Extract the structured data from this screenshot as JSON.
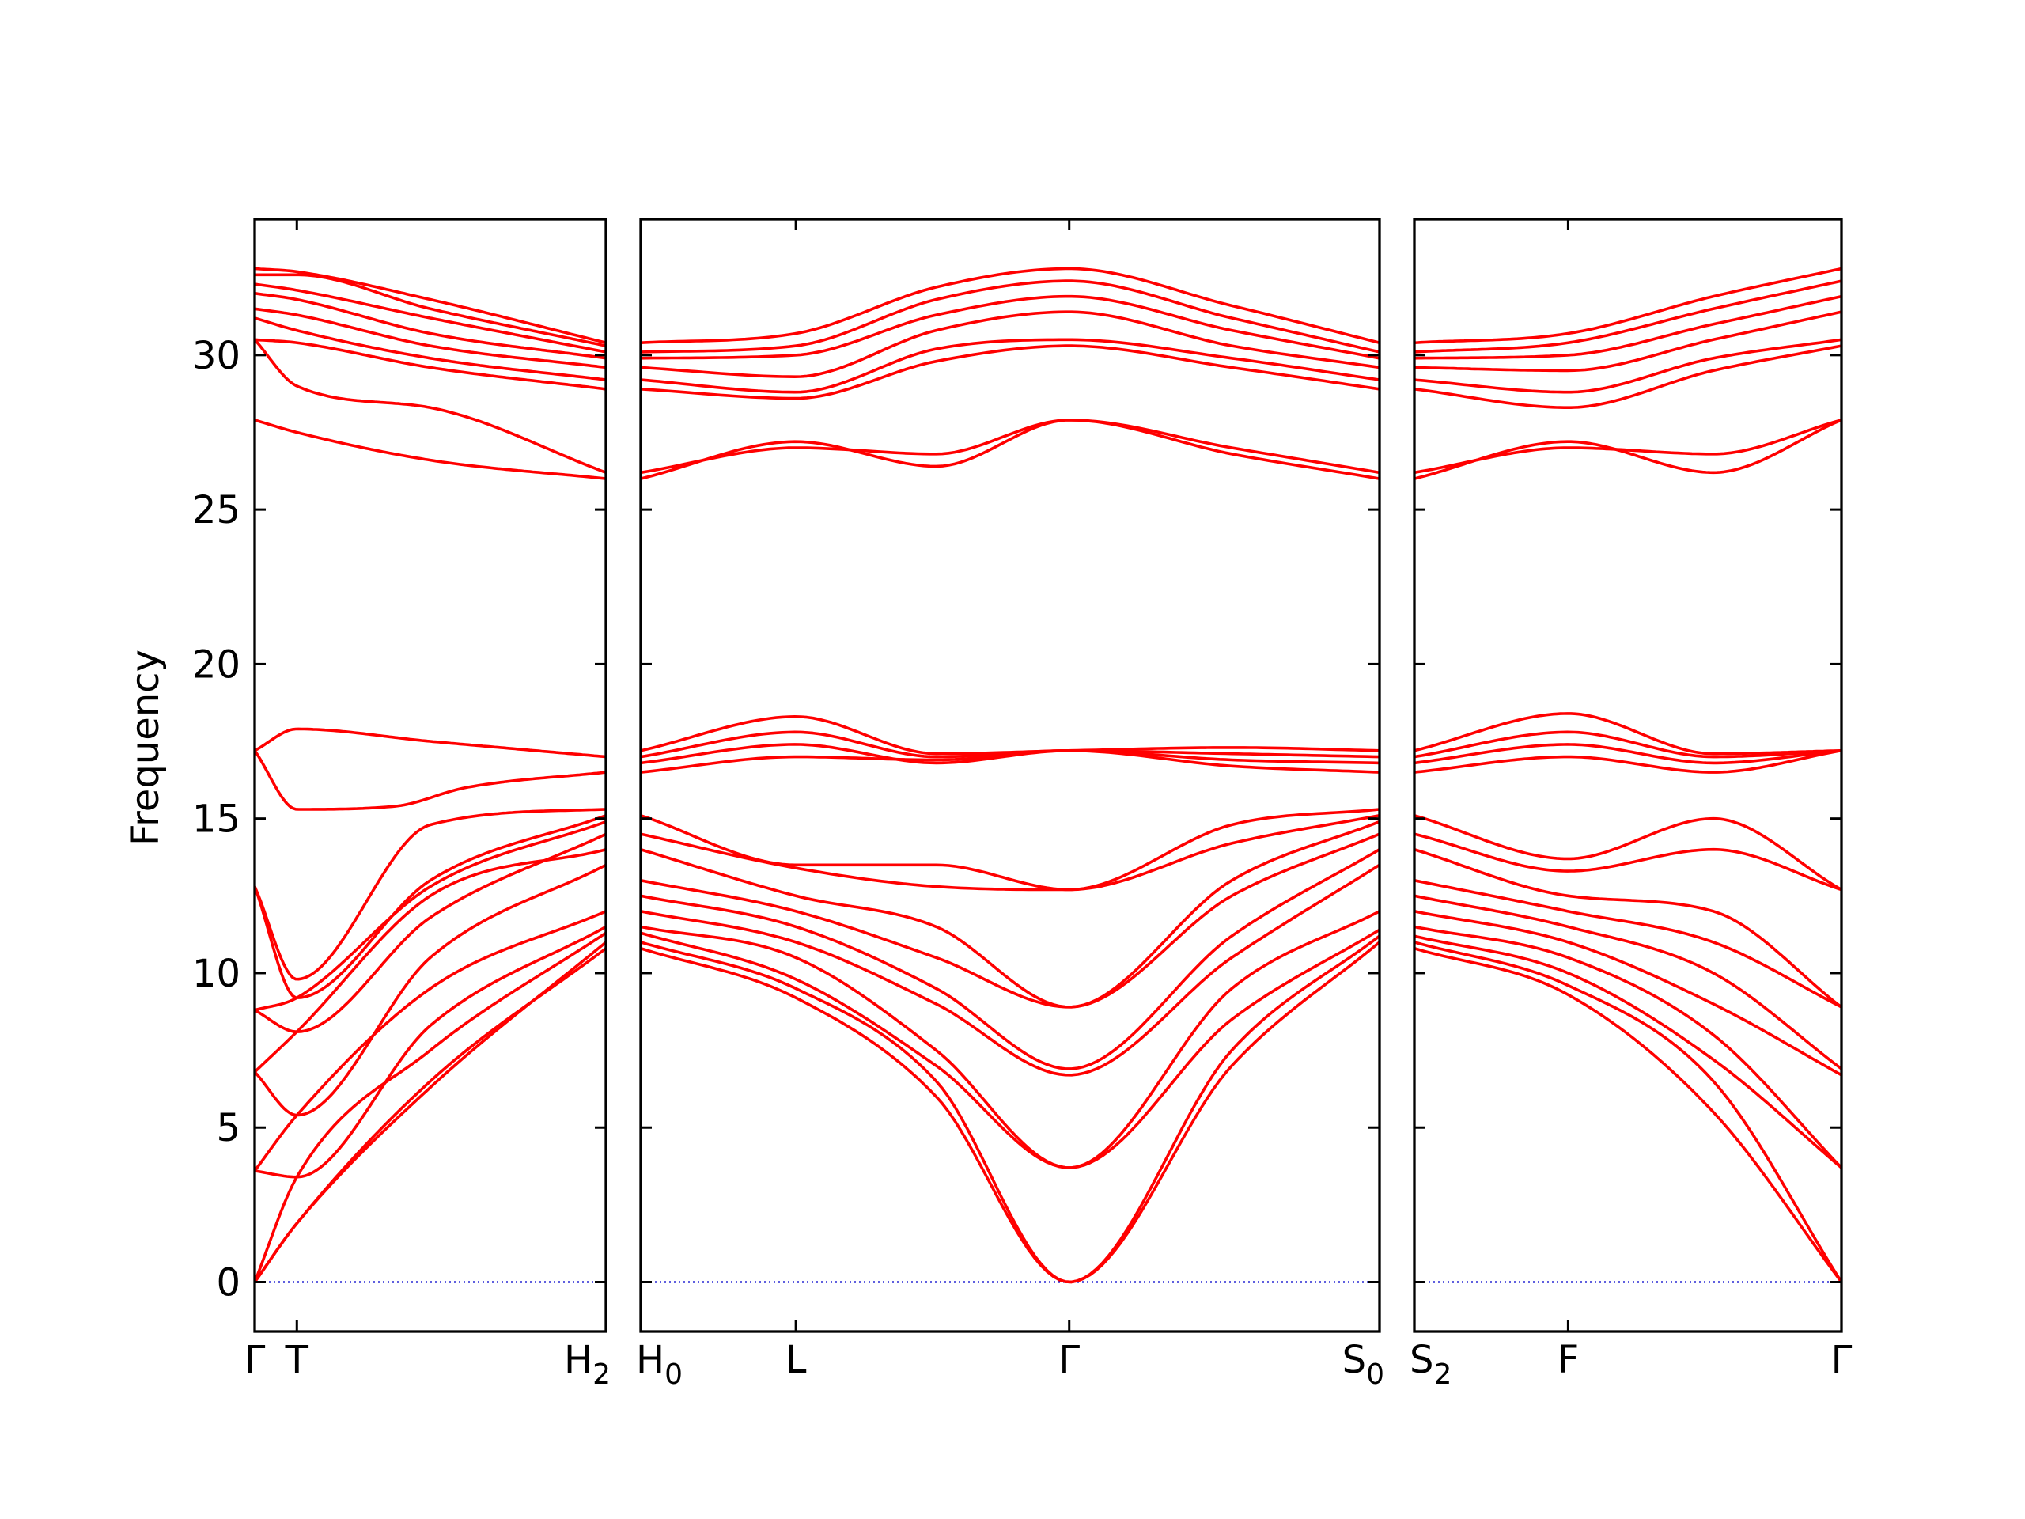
{
  "chart_data": {
    "type": "line",
    "title": "",
    "ylabel": "Frequency",
    "xlabel": "",
    "ylim": [
      -1.6,
      34.4
    ],
    "yticks": [
      0,
      5,
      10,
      15,
      20,
      25,
      30
    ],
    "grid": false,
    "colors": {
      "band": "#ff0000",
      "zero_line": "#0000cc"
    },
    "panels": [
      {
        "name": "panel-1",
        "x_labels": [
          {
            "pos": 0.0,
            "text": "Γ"
          },
          {
            "pos": 0.12,
            "text": "T"
          },
          {
            "pos": 1.0,
            "text": "H",
            "sub": "2"
          }
        ],
        "bands": [
          {
            "x": [
              0,
              0.12,
              0.5,
              1
            ],
            "y": [
              0,
              1.9,
              6.5,
              10.8
            ]
          },
          {
            "x": [
              0,
              0.12,
              0.5,
              1
            ],
            "y": [
              0,
              1.9,
              6.3,
              11.0
            ]
          },
          {
            "x": [
              0,
              0.12,
              0.5,
              1
            ],
            "y": [
              0,
              3.4,
              7.5,
              11.3
            ]
          },
          {
            "x": [
              0,
              0.12,
              0.5,
              1
            ],
            "y": [
              3.6,
              3.4,
              8.3,
              11.5
            ]
          },
          {
            "x": [
              0,
              0.12,
              0.5,
              1
            ],
            "y": [
              3.6,
              5.4,
              9.5,
              12.0
            ]
          },
          {
            "x": [
              0,
              0.12,
              0.5,
              1
            ],
            "y": [
              6.8,
              5.4,
              10.5,
              13.5
            ]
          },
          {
            "x": [
              0,
              0.12,
              0.5,
              1
            ],
            "y": [
              6.8,
              8.1,
              12.5,
              14.0
            ]
          },
          {
            "x": [
              0,
              0.12,
              0.5,
              1
            ],
            "y": [
              8.8,
              8.1,
              11.8,
              14.5
            ]
          },
          {
            "x": [
              0,
              0.12,
              0.5,
              1
            ],
            "y": [
              8.8,
              9.2,
              12.8,
              14.9
            ]
          },
          {
            "x": [
              0,
              0.12,
              0.5,
              1
            ],
            "y": [
              12.8,
              9.2,
              13.0,
              15.1
            ]
          },
          {
            "x": [
              0,
              0.12,
              0.5,
              1
            ],
            "y": [
              12.8,
              9.8,
              14.8,
              15.3
            ]
          },
          {
            "x": [
              0,
              0.12,
              0.4,
              0.6,
              1
            ],
            "y": [
              17.2,
              15.3,
              15.4,
              16.0,
              16.5
            ]
          },
          {
            "x": [
              0,
              0.12,
              0.5,
              1
            ],
            "y": [
              17.2,
              17.9,
              17.5,
              17.0
            ]
          },
          {
            "x": [
              0,
              0.12,
              0.5,
              1
            ],
            "y": [
              27.9,
              27.5,
              26.6,
              26.0
            ]
          },
          {
            "x": [
              0,
              0.12,
              0.5,
              1
            ],
            "y": [
              30.5,
              29.0,
              28.3,
              26.2
            ]
          },
          {
            "x": [
              0,
              0.12,
              0.5,
              1
            ],
            "y": [
              30.5,
              30.4,
              29.6,
              28.9
            ]
          },
          {
            "x": [
              0,
              0.12,
              0.5,
              1
            ],
            "y": [
              31.2,
              30.8,
              29.9,
              29.2
            ]
          },
          {
            "x": [
              0,
              0.12,
              0.5,
              1
            ],
            "y": [
              31.5,
              31.3,
              30.3,
              29.6
            ]
          },
          {
            "x": [
              0,
              0.12,
              0.5,
              1
            ],
            "y": [
              32.0,
              31.8,
              30.7,
              29.9
            ]
          },
          {
            "x": [
              0,
              0.12,
              0.5,
              1
            ],
            "y": [
              32.3,
              32.1,
              31.2,
              30.1
            ]
          },
          {
            "x": [
              0,
              0.12,
              0.5,
              1
            ],
            "y": [
              32.6,
              32.6,
              31.5,
              30.3
            ]
          },
          {
            "x": [
              0,
              0.12,
              0.5,
              1
            ],
            "y": [
              32.8,
              32.7,
              31.8,
              30.4
            ]
          }
        ]
      },
      {
        "name": "panel-2",
        "x_labels": [
          {
            "pos": 0.0,
            "text": "H",
            "sub": "0"
          },
          {
            "pos": 0.21,
            "text": "L"
          },
          {
            "pos": 0.58,
            "text": "Γ"
          },
          {
            "pos": 1.0,
            "text": "S",
            "sub": "0"
          }
        ],
        "bands": [
          {
            "x": [
              0,
              0.21,
              0.4,
              0.58,
              0.8,
              1
            ],
            "y": [
              10.8,
              9.2,
              6.0,
              0,
              7.0,
              11.0
            ]
          },
          {
            "x": [
              0,
              0.21,
              0.4,
              0.58,
              0.8,
              1
            ],
            "y": [
              11.0,
              9.5,
              6.5,
              0,
              7.5,
              11.2
            ]
          },
          {
            "x": [
              0,
              0.21,
              0.4,
              0.58,
              0.8,
              1
            ],
            "y": [
              11.3,
              9.8,
              7.0,
              3.7,
              8.5,
              11.4
            ]
          },
          {
            "x": [
              0,
              0.21,
              0.4,
              0.58,
              0.8,
              1
            ],
            "y": [
              11.5,
              10.5,
              7.5,
              3.7,
              9.5,
              12.0
            ]
          },
          {
            "x": [
              0,
              0.21,
              0.4,
              0.58,
              0.8,
              1
            ],
            "y": [
              12.0,
              11.0,
              9.0,
              6.7,
              10.5,
              13.5
            ]
          },
          {
            "x": [
              0,
              0.21,
              0.4,
              0.58,
              0.8,
              1
            ],
            "y": [
              12.5,
              11.5,
              9.5,
              6.9,
              11.2,
              14.0
            ]
          },
          {
            "x": [
              0,
              0.21,
              0.4,
              0.58,
              0.8,
              1
            ],
            "y": [
              13.0,
              12.0,
              10.5,
              8.9,
              12.5,
              14.5
            ]
          },
          {
            "x": [
              0,
              0.21,
              0.4,
              0.58,
              0.8,
              1
            ],
            "y": [
              14.0,
              12.5,
              11.5,
              8.9,
              13.0,
              14.9
            ]
          },
          {
            "x": [
              0,
              0.21,
              0.4,
              0.58,
              0.8,
              1
            ],
            "y": [
              14.5,
              13.4,
              12.8,
              12.7,
              14.2,
              15.1
            ]
          },
          {
            "x": [
              0,
              0.21,
              0.4,
              0.58,
              0.8,
              1
            ],
            "y": [
              15.1,
              13.5,
              13.5,
              12.7,
              14.8,
              15.3
            ]
          },
          {
            "x": [
              0,
              0.21,
              0.4,
              0.58,
              0.8,
              1
            ],
            "y": [
              16.5,
              17.0,
              16.9,
              17.2,
              16.7,
              16.5
            ]
          },
          {
            "x": [
              0,
              0.21,
              0.4,
              0.58,
              0.8,
              1
            ],
            "y": [
              16.8,
              17.4,
              16.8,
              17.2,
              16.9,
              16.8
            ]
          },
          {
            "x": [
              0,
              0.21,
              0.4,
              0.58,
              0.8,
              1
            ],
            "y": [
              17.0,
              17.8,
              17.0,
              17.2,
              17.1,
              17.0
            ]
          },
          {
            "x": [
              0,
              0.21,
              0.4,
              0.58,
              0.8,
              1
            ],
            "y": [
              17.2,
              18.3,
              17.1,
              17.2,
              17.3,
              17.2
            ]
          },
          {
            "x": [
              0,
              0.21,
              0.4,
              0.58,
              0.8,
              1
            ],
            "y": [
              26.0,
              27.2,
              26.4,
              27.9,
              26.8,
              26.0
            ]
          },
          {
            "x": [
              0,
              0.21,
              0.4,
              0.58,
              0.8,
              1
            ],
            "y": [
              26.2,
              27.0,
              26.8,
              27.9,
              27.0,
              26.2
            ]
          },
          {
            "x": [
              0,
              0.21,
              0.4,
              0.58,
              0.8,
              1
            ],
            "y": [
              28.9,
              28.6,
              29.8,
              30.3,
              29.6,
              28.9
            ]
          },
          {
            "x": [
              0,
              0.21,
              0.4,
              0.58,
              0.8,
              1
            ],
            "y": [
              29.2,
              28.8,
              30.2,
              30.5,
              29.9,
              29.2
            ]
          },
          {
            "x": [
              0,
              0.21,
              0.4,
              0.58,
              0.8,
              1
            ],
            "y": [
              29.6,
              29.3,
              30.8,
              31.4,
              30.3,
              29.6
            ]
          },
          {
            "x": [
              0,
              0.21,
              0.4,
              0.58,
              0.8,
              1
            ],
            "y": [
              29.9,
              30.0,
              31.3,
              31.9,
              30.8,
              29.9
            ]
          },
          {
            "x": [
              0,
              0.21,
              0.4,
              0.58,
              0.8,
              1
            ],
            "y": [
              30.1,
              30.3,
              31.8,
              32.4,
              31.2,
              30.1
            ]
          },
          {
            "x": [
              0,
              0.21,
              0.4,
              0.58,
              0.8,
              1
            ],
            "y": [
              30.4,
              30.7,
              32.2,
              32.8,
              31.6,
              30.4
            ]
          }
        ]
      },
      {
        "name": "panel-3",
        "x_labels": [
          {
            "pos": 0.0,
            "text": "S",
            "sub": "2"
          },
          {
            "pos": 0.36,
            "text": "F"
          },
          {
            "pos": 1.0,
            "text": "Γ"
          }
        ],
        "bands": [
          {
            "x": [
              0,
              0.36,
              0.7,
              1
            ],
            "y": [
              10.8,
              9.3,
              5.5,
              0
            ]
          },
          {
            "x": [
              0,
              0.36,
              0.7,
              1
            ],
            "y": [
              11.0,
              9.6,
              6.5,
              0
            ]
          },
          {
            "x": [
              0,
              0.36,
              0.7,
              1
            ],
            "y": [
              11.2,
              10.0,
              7.2,
              3.7
            ]
          },
          {
            "x": [
              0,
              0.36,
              0.7,
              1
            ],
            "y": [
              11.5,
              10.5,
              8.0,
              3.7
            ]
          },
          {
            "x": [
              0,
              0.36,
              0.7,
              1
            ],
            "y": [
              12.0,
              11.0,
              9.0,
              6.7
            ]
          },
          {
            "x": [
              0,
              0.36,
              0.7,
              1
            ],
            "y": [
              12.5,
              11.5,
              10.0,
              6.9
            ]
          },
          {
            "x": [
              0,
              0.36,
              0.7,
              1
            ],
            "y": [
              13.0,
              12.0,
              11.0,
              8.9
            ]
          },
          {
            "x": [
              0,
              0.36,
              0.7,
              1
            ],
            "y": [
              14.0,
              12.5,
              12.0,
              8.9
            ]
          },
          {
            "x": [
              0,
              0.36,
              0.7,
              1
            ],
            "y": [
              14.5,
              13.3,
              14.0,
              12.7
            ]
          },
          {
            "x": [
              0,
              0.36,
              0.7,
              1
            ],
            "y": [
              15.1,
              13.7,
              15.0,
              12.7
            ]
          },
          {
            "x": [
              0,
              0.36,
              0.7,
              1
            ],
            "y": [
              16.5,
              17.0,
              16.5,
              17.2
            ]
          },
          {
            "x": [
              0,
              0.36,
              0.7,
              1
            ],
            "y": [
              16.8,
              17.4,
              16.8,
              17.2
            ]
          },
          {
            "x": [
              0,
              0.36,
              0.7,
              1
            ],
            "y": [
              17.0,
              17.8,
              17.0,
              17.2
            ]
          },
          {
            "x": [
              0,
              0.36,
              0.7,
              1
            ],
            "y": [
              17.2,
              18.4,
              17.1,
              17.2
            ]
          },
          {
            "x": [
              0,
              0.36,
              0.7,
              1
            ],
            "y": [
              26.0,
              27.2,
              26.2,
              27.9
            ]
          },
          {
            "x": [
              0,
              0.36,
              0.7,
              1
            ],
            "y": [
              26.2,
              27.0,
              26.8,
              27.9
            ]
          },
          {
            "x": [
              0,
              0.36,
              0.7,
              1
            ],
            "y": [
              28.9,
              28.3,
              29.5,
              30.3
            ]
          },
          {
            "x": [
              0,
              0.36,
              0.7,
              1
            ],
            "y": [
              29.2,
              28.8,
              29.9,
              30.5
            ]
          },
          {
            "x": [
              0,
              0.36,
              0.7,
              1
            ],
            "y": [
              29.6,
              29.5,
              30.5,
              31.4
            ]
          },
          {
            "x": [
              0,
              0.36,
              0.7,
              1
            ],
            "y": [
              29.9,
              30.0,
              31.0,
              31.9
            ]
          },
          {
            "x": [
              0,
              0.36,
              0.7,
              1
            ],
            "y": [
              30.1,
              30.4,
              31.5,
              32.4
            ]
          },
          {
            "x": [
              0,
              0.36,
              0.7,
              1
            ],
            "y": [
              30.4,
              30.7,
              31.9,
              32.8
            ]
          }
        ]
      }
    ]
  }
}
